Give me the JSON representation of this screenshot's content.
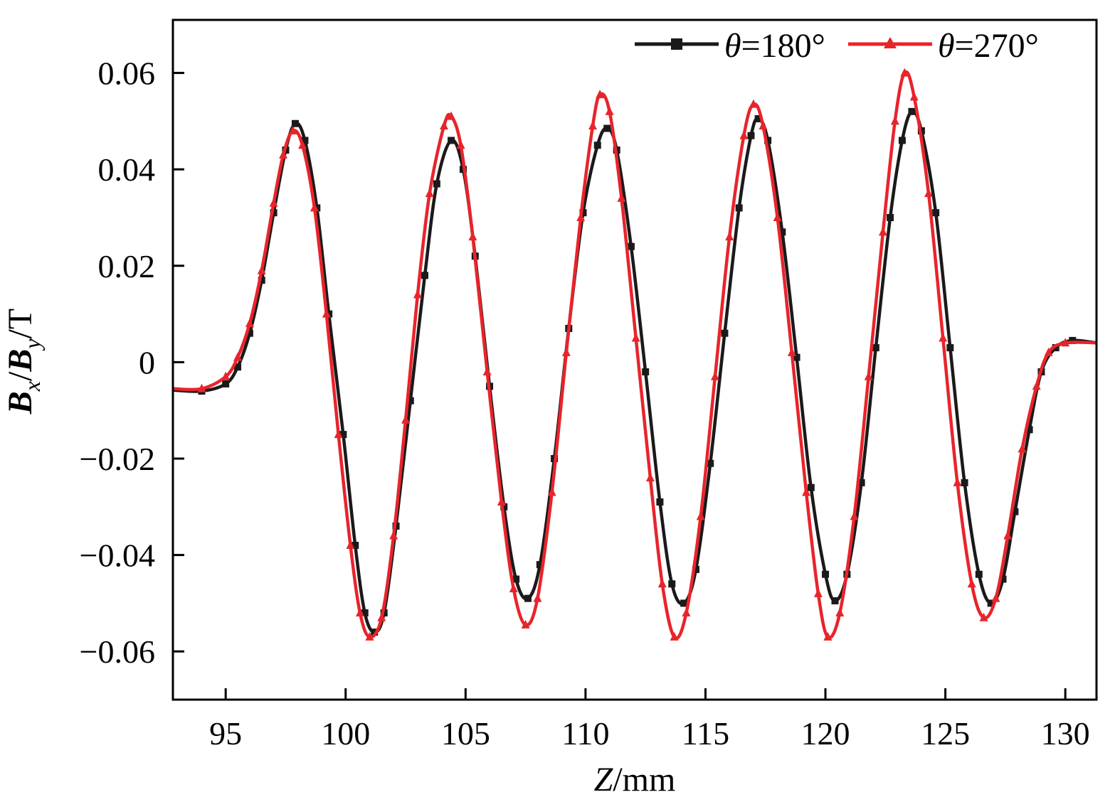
{
  "chart_data": {
    "type": "line",
    "title": "",
    "xlabel": {
      "var": "Z",
      "unit": "/mm"
    },
    "ylabel": {
      "b1": "B",
      "s1": "x",
      "sep": "/",
      "b2": "B",
      "s2": "y",
      "unit": "/T"
    },
    "xlim": [
      92.8,
      131.3
    ],
    "ylim": [
      -0.07,
      0.071
    ],
    "x_ticks": [
      95,
      100,
      105,
      110,
      115,
      120,
      125,
      130
    ],
    "x_tick_labels": [
      "95",
      "100",
      "105",
      "110",
      "115",
      "120",
      "125",
      "130"
    ],
    "y_ticks": [
      0.06,
      0.04,
      0.02,
      0,
      -0.02,
      -0.04,
      -0.06
    ],
    "y_tick_labels": [
      "0.06",
      "0.04",
      "0.02",
      "0",
      "−0.02",
      "−0.04",
      "−0.06"
    ],
    "grid": false,
    "legend_position": "top-right",
    "series": [
      {
        "name": "θ=180°",
        "legend": {
          "sym": "θ",
          "rest": "=180°"
        },
        "color": "#1a1a1a",
        "marker": "square",
        "points": [
          [
            92.8,
            -0.0058
          ],
          [
            94,
            -0.006
          ],
          [
            95,
            -0.0045
          ],
          [
            95.5,
            -0.001
          ],
          [
            96,
            0.006
          ],
          [
            96.5,
            0.017
          ],
          [
            97,
            0.031
          ],
          [
            97.5,
            0.044
          ],
          [
            97.9,
            0.0495
          ],
          [
            98.3,
            0.046
          ],
          [
            98.8,
            0.032
          ],
          [
            99.3,
            0.01
          ],
          [
            99.9,
            -0.015
          ],
          [
            100.4,
            -0.038
          ],
          [
            100.8,
            -0.052
          ],
          [
            101.2,
            -0.056
          ],
          [
            101.6,
            -0.052
          ],
          [
            102.1,
            -0.034
          ],
          [
            102.7,
            -0.008
          ],
          [
            103.3,
            0.018
          ],
          [
            103.8,
            0.037
          ],
          [
            104.4,
            0.046
          ],
          [
            104.9,
            0.04
          ],
          [
            105.4,
            0.022
          ],
          [
            106,
            -0.005
          ],
          [
            106.6,
            -0.03
          ],
          [
            107.1,
            -0.045
          ],
          [
            107.6,
            -0.049
          ],
          [
            108.1,
            -0.042
          ],
          [
            108.7,
            -0.02
          ],
          [
            109.3,
            0.007
          ],
          [
            109.9,
            0.031
          ],
          [
            110.5,
            0.045
          ],
          [
            110.9,
            0.0485
          ],
          [
            111.3,
            0.044
          ],
          [
            111.9,
            0.024
          ],
          [
            112.5,
            -0.002
          ],
          [
            113.1,
            -0.029
          ],
          [
            113.6,
            -0.046
          ],
          [
            114.1,
            -0.05
          ],
          [
            114.6,
            -0.043
          ],
          [
            115.2,
            -0.021
          ],
          [
            115.8,
            0.006
          ],
          [
            116.4,
            0.032
          ],
          [
            116.9,
            0.047
          ],
          [
            117.2,
            0.0505
          ],
          [
            117.6,
            0.046
          ],
          [
            118.2,
            0.027
          ],
          [
            118.8,
            0.001
          ],
          [
            119.4,
            -0.026
          ],
          [
            120,
            -0.044
          ],
          [
            120.4,
            -0.0495
          ],
          [
            120.9,
            -0.044
          ],
          [
            121.5,
            -0.025
          ],
          [
            122.1,
            0.003
          ],
          [
            122.7,
            0.03
          ],
          [
            123.2,
            0.046
          ],
          [
            123.6,
            0.052
          ],
          [
            124,
            0.048
          ],
          [
            124.6,
            0.031
          ],
          [
            125.2,
            0.003
          ],
          [
            125.8,
            -0.025
          ],
          [
            126.4,
            -0.044
          ],
          [
            126.9,
            -0.05
          ],
          [
            127.4,
            -0.045
          ],
          [
            127.9,
            -0.031
          ],
          [
            128.5,
            -0.014
          ],
          [
            129,
            -0.002
          ],
          [
            129.6,
            0.003
          ],
          [
            130.3,
            0.0045
          ],
          [
            131.3,
            0.004
          ]
        ]
      },
      {
        "name": "θ=270°",
        "legend": {
          "sym": "θ",
          "rest": "=270°"
        },
        "color": "#e8242b",
        "marker": "triangle",
        "points": [
          [
            92.8,
            -0.0055
          ],
          [
            94,
            -0.0055
          ],
          [
            95,
            -0.003
          ],
          [
            95.5,
            0.001
          ],
          [
            96,
            0.008
          ],
          [
            96.5,
            0.019
          ],
          [
            97,
            0.033
          ],
          [
            97.4,
            0.043
          ],
          [
            97.8,
            0.048
          ],
          [
            98.2,
            0.045
          ],
          [
            98.7,
            0.032
          ],
          [
            99.2,
            0.01
          ],
          [
            99.7,
            -0.015
          ],
          [
            100.2,
            -0.038
          ],
          [
            100.6,
            -0.052
          ],
          [
            101,
            -0.057
          ],
          [
            101.5,
            -0.053
          ],
          [
            102,
            -0.036
          ],
          [
            102.5,
            -0.012
          ],
          [
            103,
            0.014
          ],
          [
            103.5,
            0.035
          ],
          [
            104.1,
            0.049
          ],
          [
            104.4,
            0.051
          ],
          [
            104.8,
            0.045
          ],
          [
            105.3,
            0.026
          ],
          [
            105.9,
            -0.002
          ],
          [
            106.5,
            -0.029
          ],
          [
            107,
            -0.047
          ],
          [
            107.5,
            -0.0545
          ],
          [
            108,
            -0.049
          ],
          [
            108.6,
            -0.027
          ],
          [
            109.2,
            0.002
          ],
          [
            109.8,
            0.03
          ],
          [
            110.3,
            0.049
          ],
          [
            110.6,
            0.0555
          ],
          [
            111,
            0.052
          ],
          [
            111.5,
            0.034
          ],
          [
            112.1,
            0.005
          ],
          [
            112.7,
            -0.024
          ],
          [
            113.2,
            -0.046
          ],
          [
            113.7,
            -0.057
          ],
          [
            114.2,
            -0.052
          ],
          [
            114.8,
            -0.032
          ],
          [
            115.4,
            -0.003
          ],
          [
            116,
            0.026
          ],
          [
            116.6,
            0.047
          ],
          [
            117,
            0.0535
          ],
          [
            117.4,
            0.049
          ],
          [
            118,
            0.03
          ],
          [
            118.6,
            0.002
          ],
          [
            119.2,
            -0.027
          ],
          [
            119.7,
            -0.048
          ],
          [
            120.1,
            -0.057
          ],
          [
            120.6,
            -0.052
          ],
          [
            121.2,
            -0.032
          ],
          [
            121.8,
            -0.003
          ],
          [
            122.4,
            0.027
          ],
          [
            122.9,
            0.05
          ],
          [
            123.3,
            0.06
          ],
          [
            123.7,
            0.055
          ],
          [
            124.3,
            0.035
          ],
          [
            124.9,
            0.005
          ],
          [
            125.5,
            -0.025
          ],
          [
            126.1,
            -0.046
          ],
          [
            126.6,
            -0.053
          ],
          [
            127.1,
            -0.049
          ],
          [
            127.6,
            -0.036
          ],
          [
            128.2,
            -0.018
          ],
          [
            128.8,
            -0.005
          ],
          [
            129.3,
            0.002
          ],
          [
            130,
            0.004
          ],
          [
            131.3,
            0.004
          ]
        ]
      }
    ]
  }
}
